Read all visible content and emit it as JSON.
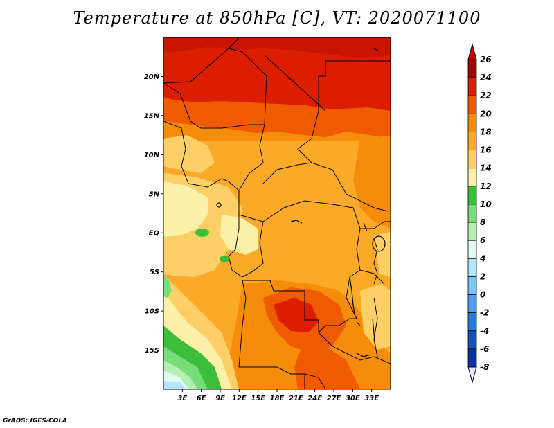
{
  "title": "Temperature at 850hPa [C], VT: 2020071100",
  "credit": "GrADS: IGES/COLA",
  "map": {
    "lon_range": [
      0,
      36
    ],
    "lat_range": [
      -20,
      25
    ],
    "lat_ticks": [
      {
        "value": 20,
        "label": "20N"
      },
      {
        "value": 15,
        "label": "15N"
      },
      {
        "value": 10,
        "label": "10N"
      },
      {
        "value": 5,
        "label": "5N"
      },
      {
        "value": 0,
        "label": "EQ"
      },
      {
        "value": -5,
        "label": "5S"
      },
      {
        "value": -10,
        "label": "10S"
      },
      {
        "value": -15,
        "label": "15S"
      }
    ],
    "lon_ticks": [
      {
        "value": 3,
        "label": "3E"
      },
      {
        "value": 6,
        "label": "6E"
      },
      {
        "value": 9,
        "label": "9E"
      },
      {
        "value": 12,
        "label": "12E"
      },
      {
        "value": 15,
        "label": "15E"
      },
      {
        "value": 18,
        "label": "18E"
      },
      {
        "value": 21,
        "label": "21E"
      },
      {
        "value": 24,
        "label": "24E"
      },
      {
        "value": 27,
        "label": "27E"
      },
      {
        "value": 30,
        "label": "30E"
      },
      {
        "value": 33,
        "label": "33E"
      }
    ]
  },
  "colorbar": {
    "levels": [
      {
        "label": "26",
        "color": "#a50000"
      },
      {
        "label": "24",
        "color": "#dc1e00"
      },
      {
        "label": "22",
        "color": "#f05a00"
      },
      {
        "label": "20",
        "color": "#f58c0a"
      },
      {
        "label": "18",
        "color": "#faaa28"
      },
      {
        "label": "16",
        "color": "#fcd066"
      },
      {
        "label": "14",
        "color": "#fdf0a8"
      },
      {
        "label": "12",
        "color": "#3cbe3c"
      },
      {
        "label": "10",
        "color": "#78dc78"
      },
      {
        "label": "8",
        "color": "#b4f0b4"
      },
      {
        "label": "6",
        "color": "#e0faf0"
      },
      {
        "label": "4",
        "color": "#b4e6fa"
      },
      {
        "label": "2",
        "color": "#78c8f5"
      },
      {
        "label": "0",
        "color": "#50a0f0"
      },
      {
        "label": "-2",
        "color": "#2878dc"
      },
      {
        "label": "-4",
        "color": "#1450be"
      },
      {
        "label": "-6",
        "color": "#0a32a0"
      },
      {
        "label": "-8",
        "color": "#0a0a5a"
      }
    ],
    "below_color": "#e6e6ff",
    "above_color": "#c80000"
  }
}
